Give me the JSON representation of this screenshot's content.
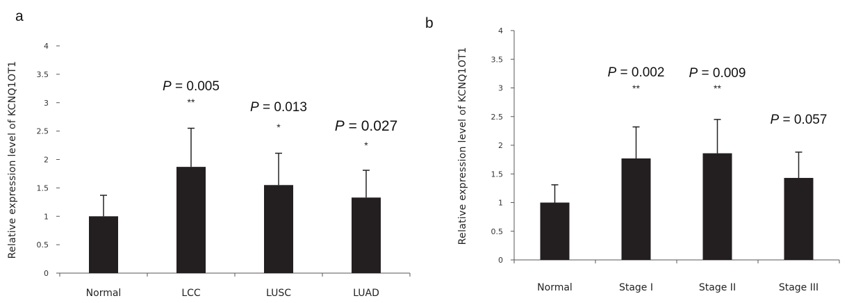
{
  "chart_data": [
    {
      "panel": "a",
      "type": "bar",
      "ylabel": "Relative expression level of KCNQ1OT1",
      "xlabel": "",
      "ylim": [
        0,
        4
      ],
      "yticks": [
        "0",
        "0.5",
        "1",
        "1.5",
        "2",
        "2.5",
        "3",
        "3.5",
        "4"
      ],
      "y_axis_line": false,
      "grid": false,
      "categories": [
        "Normal",
        "LCC",
        "LUSC",
        "LUAD"
      ],
      "values": [
        1.0,
        1.87,
        1.55,
        1.33
      ],
      "error": [
        0.37,
        0.68,
        0.56,
        0.48
      ],
      "pvalues": [
        "",
        "P = 0.005",
        "P = 0.013",
        "P = 0.027"
      ],
      "stars": [
        "",
        "**",
        "*",
        "*"
      ],
      "bar_color": "#231f20"
    },
    {
      "panel": "b",
      "type": "bar",
      "ylabel": "Relative expression level of KCNQ1OT1",
      "xlabel": "",
      "ylim": [
        0,
        4
      ],
      "yticks": [
        "0",
        "0.5",
        "1",
        "1.5",
        "2",
        "2.5",
        "3",
        "3.5",
        "4"
      ],
      "y_axis_line": true,
      "grid": false,
      "categories": [
        "Normal",
        "Stage I",
        "Stage II",
        "Stage III"
      ],
      "values": [
        1.0,
        1.77,
        1.86,
        1.43
      ],
      "error": [
        0.31,
        0.55,
        0.59,
        0.45
      ],
      "pvalues": [
        "",
        "P = 0.002",
        "P = 0.009",
        "P = 0.057"
      ],
      "stars": [
        "",
        "**",
        "**",
        ""
      ],
      "bar_color": "#231f20"
    }
  ]
}
